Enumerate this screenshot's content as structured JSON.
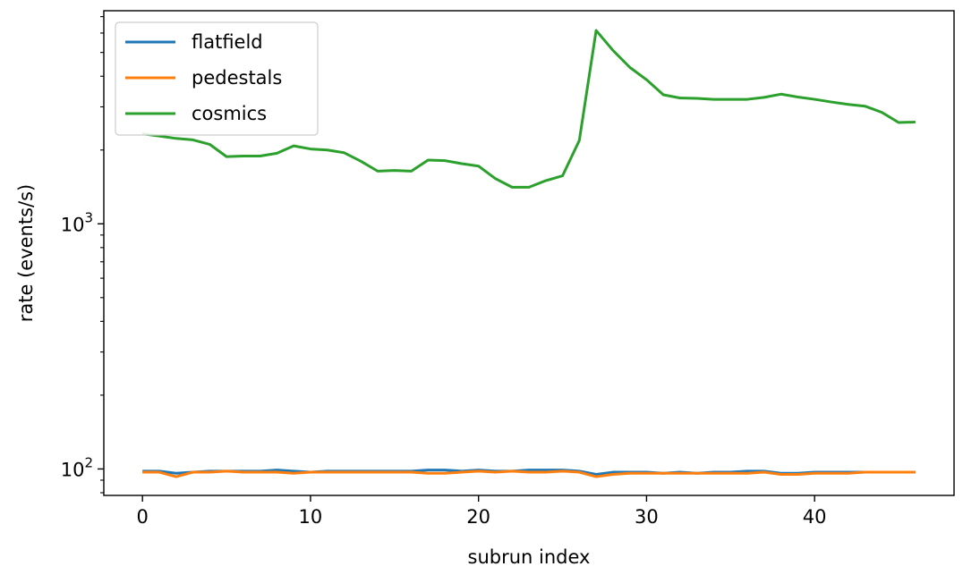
{
  "chart_data": {
    "type": "line",
    "title": "",
    "xlabel": "subrun index",
    "ylabel": "rate (events/s)",
    "yscale": "log",
    "xlim": [
      -2.3,
      48.3
    ],
    "ylim": [
      78,
      7400
    ],
    "x_ticks": [
      0,
      10,
      20,
      30,
      40
    ],
    "x_tick_labels": [
      "0",
      "10",
      "20",
      "30",
      "40"
    ],
    "y_major_ticks": [
      100,
      1000
    ],
    "y_tick_labels": [
      {
        "base": "10",
        "exp": "2"
      },
      {
        "base": "10",
        "exp": "3"
      }
    ],
    "grid": false,
    "legend_position": "top-left",
    "x": [
      0,
      1,
      2,
      3,
      4,
      5,
      6,
      7,
      8,
      9,
      10,
      11,
      12,
      13,
      14,
      15,
      16,
      17,
      18,
      19,
      20,
      21,
      22,
      23,
      24,
      25,
      26,
      27,
      28,
      29,
      30,
      31,
      32,
      33,
      34,
      35,
      36,
      37,
      38,
      39,
      40,
      41,
      42,
      43,
      44,
      45,
      46
    ],
    "series": [
      {
        "name": "flatfield",
        "color": "#1f77b4",
        "values": [
          98,
          98,
          96,
          97,
          98,
          98,
          98,
          98,
          99,
          98,
          97,
          98,
          98,
          98,
          98,
          98,
          98,
          99,
          99,
          98,
          99,
          98,
          98,
          99,
          99,
          99,
          98,
          95,
          97,
          97,
          97,
          96,
          97,
          96,
          97,
          97,
          98,
          98,
          96,
          96,
          97,
          97,
          97,
          97,
          97,
          97,
          97
        ]
      },
      {
        "name": "pedestals",
        "color": "#ff7f0e",
        "values": [
          97,
          97,
          93,
          97,
          97,
          98,
          97,
          97,
          97,
          96,
          97,
          97,
          97,
          97,
          97,
          97,
          97,
          96,
          96,
          97,
          98,
          97,
          98,
          97,
          97,
          98,
          97,
          93,
          95,
          96,
          96,
          96,
          96,
          96,
          96,
          96,
          96,
          97,
          95,
          95,
          96,
          96,
          96,
          97,
          97,
          97,
          97
        ]
      },
      {
        "name": "cosmics",
        "color": "#2ca02c",
        "values": [
          2330,
          2280,
          2230,
          2200,
          2110,
          1880,
          1890,
          1890,
          1940,
          2080,
          2020,
          2000,
          1950,
          1800,
          1640,
          1650,
          1640,
          1820,
          1810,
          1760,
          1720,
          1530,
          1410,
          1410,
          1500,
          1570,
          2190,
          6150,
          5100,
          4350,
          3870,
          3360,
          3260,
          3250,
          3220,
          3220,
          3220,
          3280,
          3380,
          3290,
          3220,
          3140,
          3070,
          3020,
          2850,
          2590,
          2600
        ]
      }
    ]
  }
}
